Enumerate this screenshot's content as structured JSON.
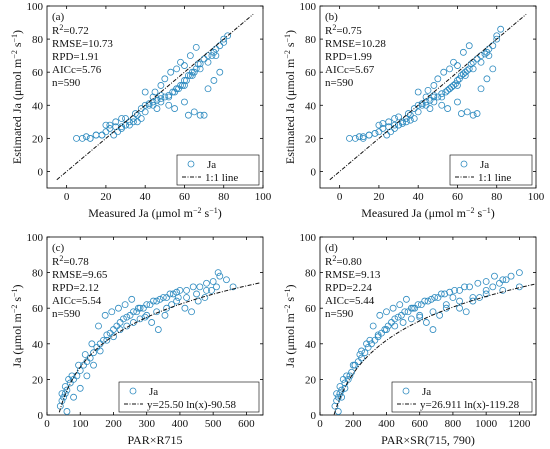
{
  "chart_data": [
    {
      "id": "a",
      "type": "scatter",
      "panel_label": "(a)",
      "xlabel": "Measured Ja (μmol m⁻² s⁻¹)",
      "ylabel": "Estimated Ja (μmol m⁻² s⁻¹)",
      "xlim": [
        -10,
        100
      ],
      "ylim": [
        -10,
        100
      ],
      "xticks": [
        0,
        20,
        40,
        60,
        80,
        100
      ],
      "yticks": [
        0,
        20,
        40,
        60,
        80,
        100
      ],
      "stats": [
        "R²=0.72",
        "RMSE=10.73",
        "RPD=1.91",
        "AICc=5.76",
        "n=590"
      ],
      "legend": {
        "position": "bottom-right",
        "series_label": "Ja",
        "line_label": "1:1 line"
      },
      "line": {
        "kind": "identity",
        "x_start": -5,
        "x_end": 95
      },
      "series": [
        {
          "name": "Ja",
          "x": [
            5,
            8,
            10,
            12,
            15,
            18,
            20,
            22,
            25,
            28,
            30,
            32,
            34,
            36,
            38,
            40,
            42,
            44,
            46,
            48,
            50,
            52,
            54,
            55,
            56,
            57,
            58,
            59,
            60,
            61,
            62,
            63,
            64,
            65,
            66,
            67,
            68,
            70,
            72,
            74,
            75,
            76,
            78,
            80,
            82,
            12,
            15,
            18,
            20,
            22,
            25,
            28,
            30,
            35,
            38,
            40,
            45,
            48,
            52,
            55,
            60,
            62,
            65,
            68,
            70,
            72,
            75,
            78,
            80,
            42,
            44,
            46,
            48,
            50,
            53,
            56,
            58,
            60,
            63,
            66,
            24,
            26,
            28,
            30,
            32,
            34,
            36,
            40,
            44,
            48,
            52,
            56,
            60,
            64,
            68,
            72,
            76
          ],
          "y": [
            20,
            20,
            21,
            20,
            22,
            22,
            24,
            26,
            27,
            27,
            28,
            28,
            30,
            30,
            32,
            40,
            41,
            42,
            43,
            44,
            45,
            46,
            48,
            48,
            50,
            50,
            52,
            52,
            55,
            55,
            58,
            58,
            60,
            60,
            62,
            65,
            65,
            68,
            70,
            70,
            72,
            74,
            76,
            78,
            82,
            20,
            22,
            22,
            28,
            28,
            30,
            32,
            32,
            35,
            38,
            48,
            48,
            46,
            40,
            38,
            42,
            34,
            36,
            34,
            34,
            50,
            55,
            60,
            80,
            40,
            45,
            38,
            52,
            56,
            60,
            62,
            66,
            64,
            70,
            75,
            22,
            24,
            26,
            28,
            30,
            32,
            34,
            36,
            40,
            42,
            45,
            50,
            52,
            58,
            62,
            66,
            70
          ]
        }
      ]
    },
    {
      "id": "b",
      "type": "scatter",
      "panel_label": "(b)",
      "xlabel": "Measured Ja (μmol m⁻² s⁻¹)",
      "ylabel": "Estimated Ja (μmol m⁻² s⁻¹)",
      "xlim": [
        -10,
        100
      ],
      "ylim": [
        -10,
        100
      ],
      "xticks": [
        0,
        20,
        40,
        60,
        80,
        100
      ],
      "yticks": [
        0,
        20,
        40,
        60,
        80,
        100
      ],
      "stats": [
        "R²=0.75",
        "RMSE=10.28",
        "RPD=1.99",
        "AICc=5.67",
        "n=590"
      ],
      "legend": {
        "position": "bottom-right",
        "series_label": "Ja",
        "line_label": "1:1 line"
      },
      "line": {
        "kind": "identity",
        "x_start": -5,
        "x_end": 95
      },
      "series": [
        {
          "name": "Ja",
          "x": [
            5,
            8,
            10,
            12,
            15,
            18,
            20,
            22,
            25,
            28,
            30,
            32,
            34,
            36,
            38,
            40,
            42,
            44,
            46,
            48,
            50,
            52,
            54,
            55,
            56,
            57,
            58,
            59,
            60,
            61,
            62,
            63,
            64,
            65,
            66,
            67,
            68,
            70,
            72,
            74,
            75,
            76,
            78,
            80,
            82,
            12,
            15,
            18,
            20,
            22,
            25,
            28,
            30,
            35,
            38,
            40,
            45,
            48,
            52,
            55,
            60,
            62,
            65,
            68,
            70,
            72,
            75,
            78,
            80,
            42,
            44,
            46,
            48,
            50,
            53,
            56,
            58,
            60,
            63,
            66,
            24,
            26,
            28,
            30,
            32,
            34,
            36,
            40,
            44,
            48,
            52,
            56,
            60,
            64,
            68,
            72,
            76
          ],
          "y": [
            20,
            20,
            21,
            21,
            22,
            23,
            24,
            26,
            27,
            28,
            28,
            29,
            30,
            31,
            32,
            40,
            41,
            42,
            43,
            45,
            45,
            47,
            48,
            49,
            50,
            51,
            52,
            53,
            55,
            56,
            58,
            59,
            60,
            61,
            62,
            65,
            66,
            68,
            70,
            71,
            72,
            74,
            76,
            80,
            86,
            20,
            22,
            23,
            28,
            29,
            30,
            32,
            33,
            35,
            38,
            48,
            49,
            46,
            40,
            38,
            42,
            35,
            36,
            34,
            35,
            50,
            56,
            62,
            82,
            40,
            45,
            38,
            52,
            56,
            60,
            62,
            66,
            64,
            72,
            76,
            22,
            24,
            26,
            28,
            30,
            32,
            34,
            36,
            40,
            42,
            45,
            50,
            52,
            58,
            62,
            66,
            70
          ]
        }
      ]
    },
    {
      "id": "c",
      "type": "scatter",
      "panel_label": "(c)",
      "xlabel": "PAR×R715",
      "ylabel": "Ja (μmol m⁻² s⁻¹)",
      "xlim": [
        0,
        650
      ],
      "ylim": [
        0,
        100
      ],
      "xticks": [
        0,
        100,
        200,
        300,
        400,
        500,
        600
      ],
      "yticks": [
        0,
        20,
        40,
        60,
        80,
        100
      ],
      "stats": [
        "R²=0.78",
        "RMSE=9.65",
        "RPD=2.12",
        "AICc=5.54",
        "n=590"
      ],
      "legend": {
        "position": "bottom-right",
        "series_label": "Ja",
        "line_label": "y=25.50 ln(x)-90.58"
      },
      "line": {
        "kind": "log",
        "a": 25.5,
        "b": -90.58,
        "x_start": 37,
        "x_end": 640
      },
      "series": [
        {
          "name": "Ja",
          "x": [
            40,
            45,
            50,
            55,
            60,
            70,
            80,
            90,
            100,
            110,
            120,
            130,
            140,
            150,
            160,
            170,
            180,
            190,
            200,
            210,
            220,
            230,
            240,
            250,
            260,
            270,
            280,
            290,
            300,
            310,
            320,
            330,
            340,
            350,
            360,
            370,
            380,
            390,
            400,
            420,
            440,
            460,
            480,
            500,
            520,
            540,
            560,
            45,
            55,
            65,
            75,
            95,
            115,
            135,
            155,
            175,
            195,
            215,
            235,
            255,
            275,
            295,
            315,
            335,
            355,
            375,
            395,
            415,
            435,
            455,
            475,
            495,
            515,
            60,
            80,
            100,
            120,
            140,
            160,
            180,
            200,
            220,
            240,
            260,
            280,
            300,
            330,
            360,
            390,
            420,
            450,
            480,
            510
          ],
          "y": [
            5,
            8,
            10,
            12,
            14,
            18,
            20,
            22,
            25,
            28,
            30,
            32,
            35,
            38,
            40,
            42,
            45,
            46,
            48,
            50,
            52,
            54,
            55,
            56,
            58,
            58,
            60,
            60,
            62,
            62,
            64,
            64,
            65,
            66,
            66,
            68,
            68,
            69,
            70,
            70,
            72,
            72,
            74,
            75,
            78,
            76,
            72,
            12,
            16,
            20,
            22,
            28,
            34,
            40,
            50,
            56,
            58,
            60,
            62,
            65,
            60,
            55,
            52,
            48,
            56,
            62,
            66,
            60,
            58,
            64,
            66,
            70,
            80,
            2,
            10,
            15,
            22,
            28,
            36,
            42,
            44,
            48,
            50,
            52,
            54,
            56,
            58,
            60,
            64,
            66,
            68,
            70,
            72
          ]
        }
      ]
    },
    {
      "id": "d",
      "type": "scatter",
      "panel_label": "(d)",
      "xlabel": "PAR×SR(715, 790)",
      "ylabel": "Ja (μmol m⁻² s⁻¹)",
      "xlim": [
        0,
        1300
      ],
      "ylim": [
        0,
        100
      ],
      "xticks": [
        0,
        200,
        400,
        600,
        800,
        1000,
        1200
      ],
      "yticks": [
        0,
        20,
        40,
        60,
        80,
        100
      ],
      "stats": [
        "R²=0.80",
        "RMSE=9.13",
        "RPD=2.24",
        "AICc=5.44",
        "n=590"
      ],
      "legend": {
        "position": "bottom-right",
        "series_label": "Ja",
        "line_label": "y=26.911 ln(x)-119.28"
      },
      "line": {
        "kind": "log",
        "a": 26.911,
        "b": -119.28,
        "x_start": 85,
        "x_end": 1290
      },
      "series": [
        {
          "name": "Ja",
          "x": [
            90,
            100,
            110,
            120,
            130,
            150,
            170,
            190,
            210,
            230,
            250,
            270,
            290,
            310,
            330,
            350,
            370,
            390,
            410,
            430,
            450,
            470,
            490,
            510,
            530,
            550,
            570,
            590,
            610,
            630,
            650,
            670,
            690,
            710,
            730,
            750,
            780,
            810,
            840,
            870,
            900,
            950,
            1000,
            1050,
            1100,
            1150,
            1200,
            100,
            120,
            140,
            160,
            200,
            240,
            280,
            320,
            360,
            400,
            440,
            480,
            520,
            560,
            600,
            640,
            680,
            720,
            760,
            800,
            840,
            880,
            920,
            960,
            1000,
            1040,
            1080,
            1120,
            110,
            130,
            150,
            180,
            210,
            250,
            300,
            350,
            400,
            450,
            500,
            550,
            600,
            680,
            760,
            840,
            920,
            1000,
            1100,
            1200
          ],
          "y": [
            5,
            8,
            10,
            12,
            14,
            18,
            20,
            24,
            28,
            30,
            32,
            35,
            38,
            40,
            42,
            45,
            46,
            48,
            50,
            52,
            54,
            55,
            56,
            58,
            58,
            60,
            60,
            62,
            62,
            64,
            64,
            65,
            66,
            66,
            68,
            68,
            69,
            70,
            70,
            72,
            72,
            74,
            75,
            78,
            76,
            78,
            80,
            12,
            16,
            20,
            22,
            28,
            34,
            40,
            50,
            56,
            58,
            60,
            62,
            65,
            60,
            55,
            52,
            48,
            56,
            62,
            66,
            60,
            58,
            64,
            66,
            70,
            72,
            74,
            76,
            2,
            10,
            15,
            22,
            28,
            36,
            42,
            44,
            48,
            50,
            52,
            54,
            56,
            58,
            60,
            64,
            66,
            68,
            70,
            72
          ]
        }
      ]
    }
  ],
  "style": {
    "marker_color": "#2e8bc0",
    "line_color": "#111111",
    "axis_color": "#000000"
  }
}
